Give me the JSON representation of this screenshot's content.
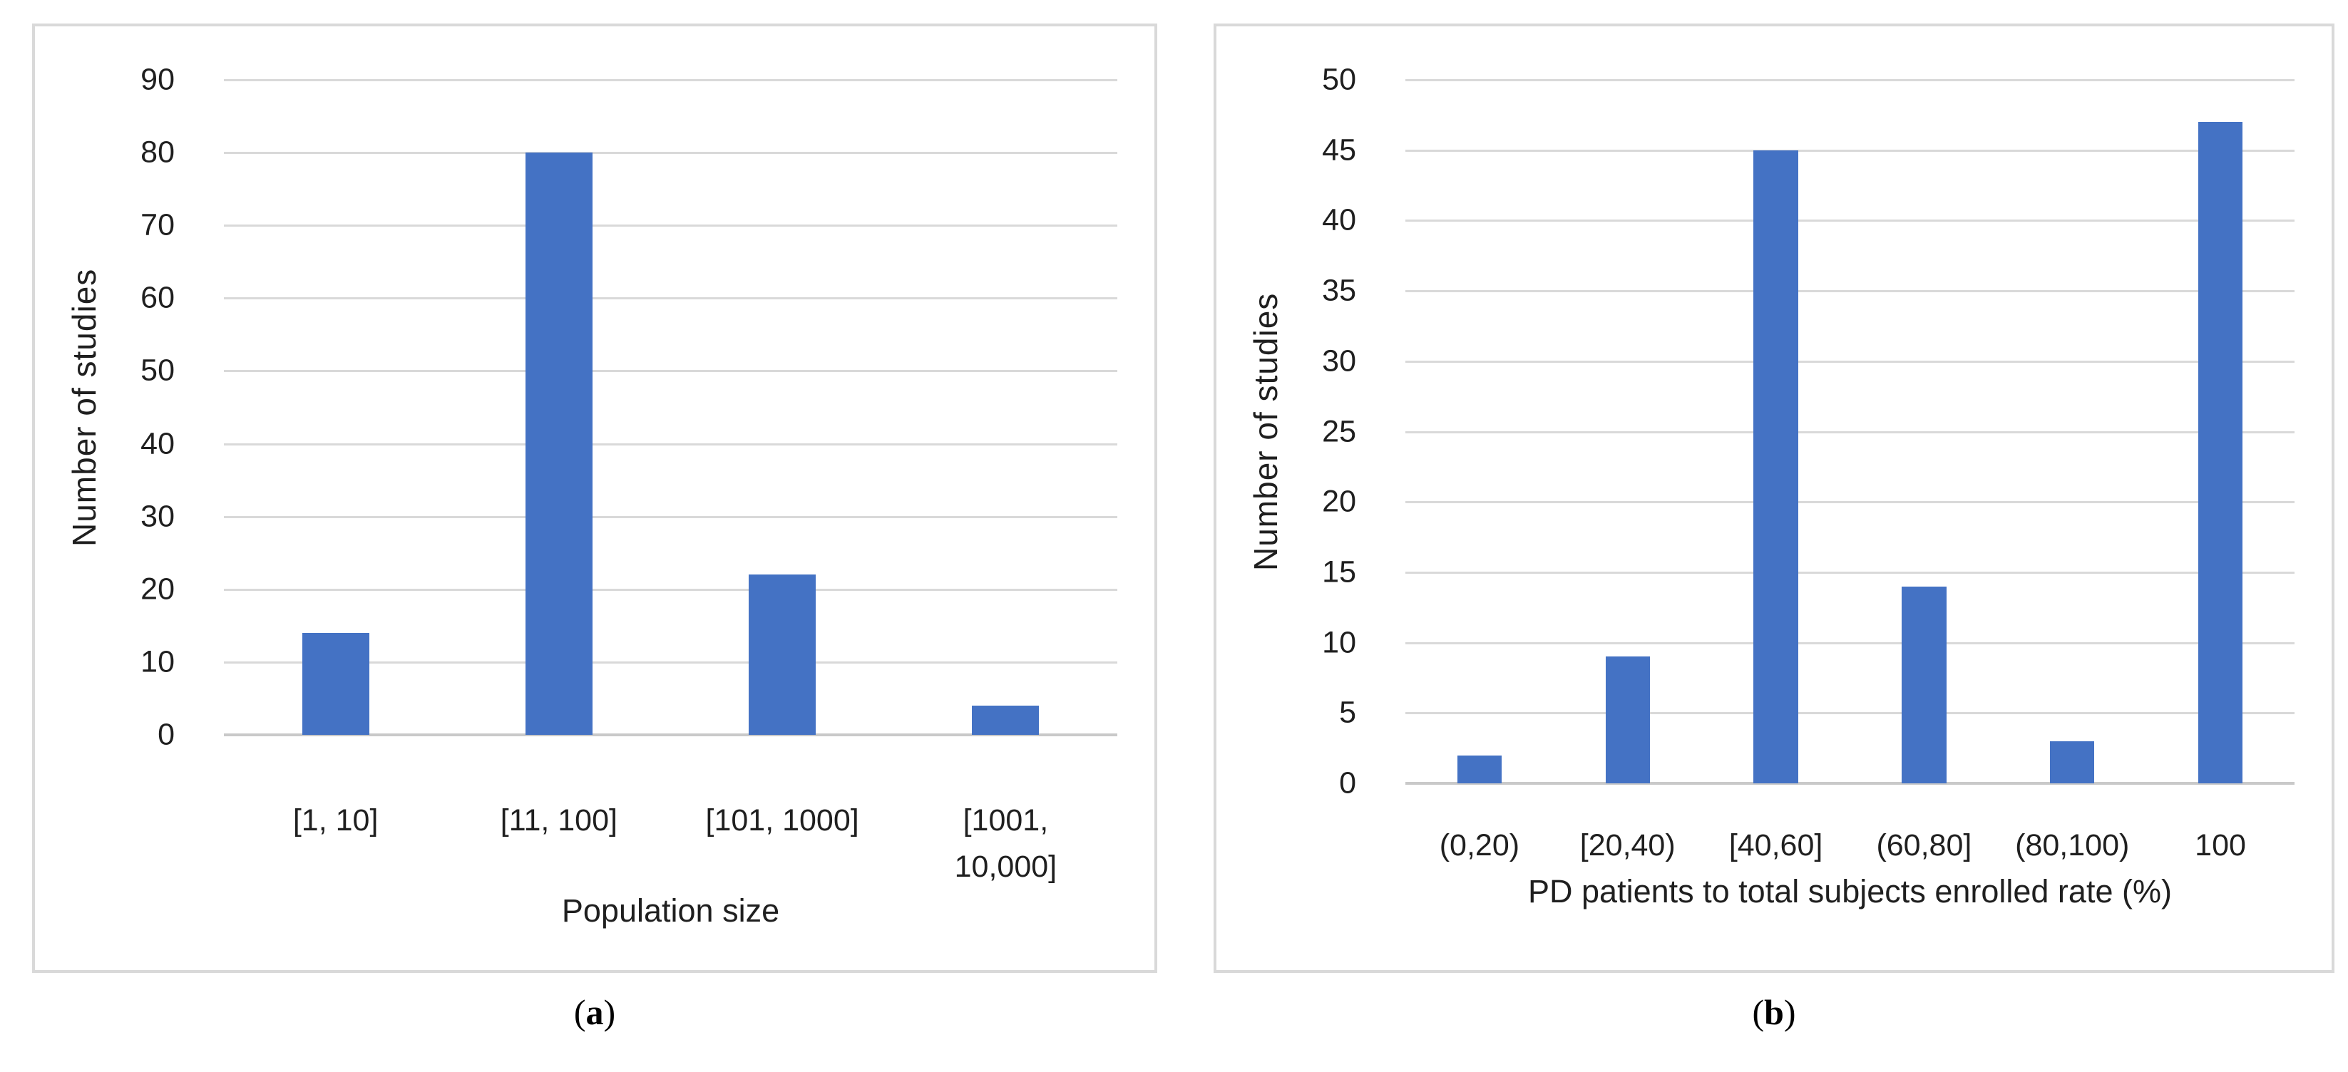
{
  "figure": {
    "captions": [
      {
        "open": "(",
        "letter": "a",
        "close": ")"
      },
      {
        "open": "(",
        "letter": "b",
        "close": ")"
      }
    ]
  },
  "colors": {
    "bar": "#4472C4",
    "gridline": "#D9D9D9",
    "axis_line": "#C9C9C9",
    "panel_border": "#D9D9D9",
    "text": "#1f1f1f"
  },
  "chart_data": [
    {
      "type": "bar",
      "title": "",
      "categories": [
        "[1, 10]",
        "[11, 100]",
        "[101, 1000]",
        "[1001, 10,000]"
      ],
      "values": [
        14,
        80,
        22,
        4
      ],
      "xlabel": "Population size",
      "ylabel": "Number of studies",
      "ylim": [
        0,
        90
      ],
      "ytick_step": 10,
      "grid": true,
      "legend": false,
      "bar_color": "#4472C4"
    },
    {
      "type": "bar",
      "title": "",
      "categories": [
        "(0,20)",
        "[20,40)",
        "[40,60]",
        "(60,80]",
        "(80,100)",
        "100"
      ],
      "values": [
        2,
        9,
        45,
        14,
        3,
        47
      ],
      "xlabel": "PD patients to total subjects enrolled rate (%)",
      "ylabel": "Number of studies",
      "ylim": [
        0,
        50
      ],
      "ytick_step": 5,
      "grid": true,
      "legend": false,
      "bar_color": "#4472C4"
    }
  ]
}
